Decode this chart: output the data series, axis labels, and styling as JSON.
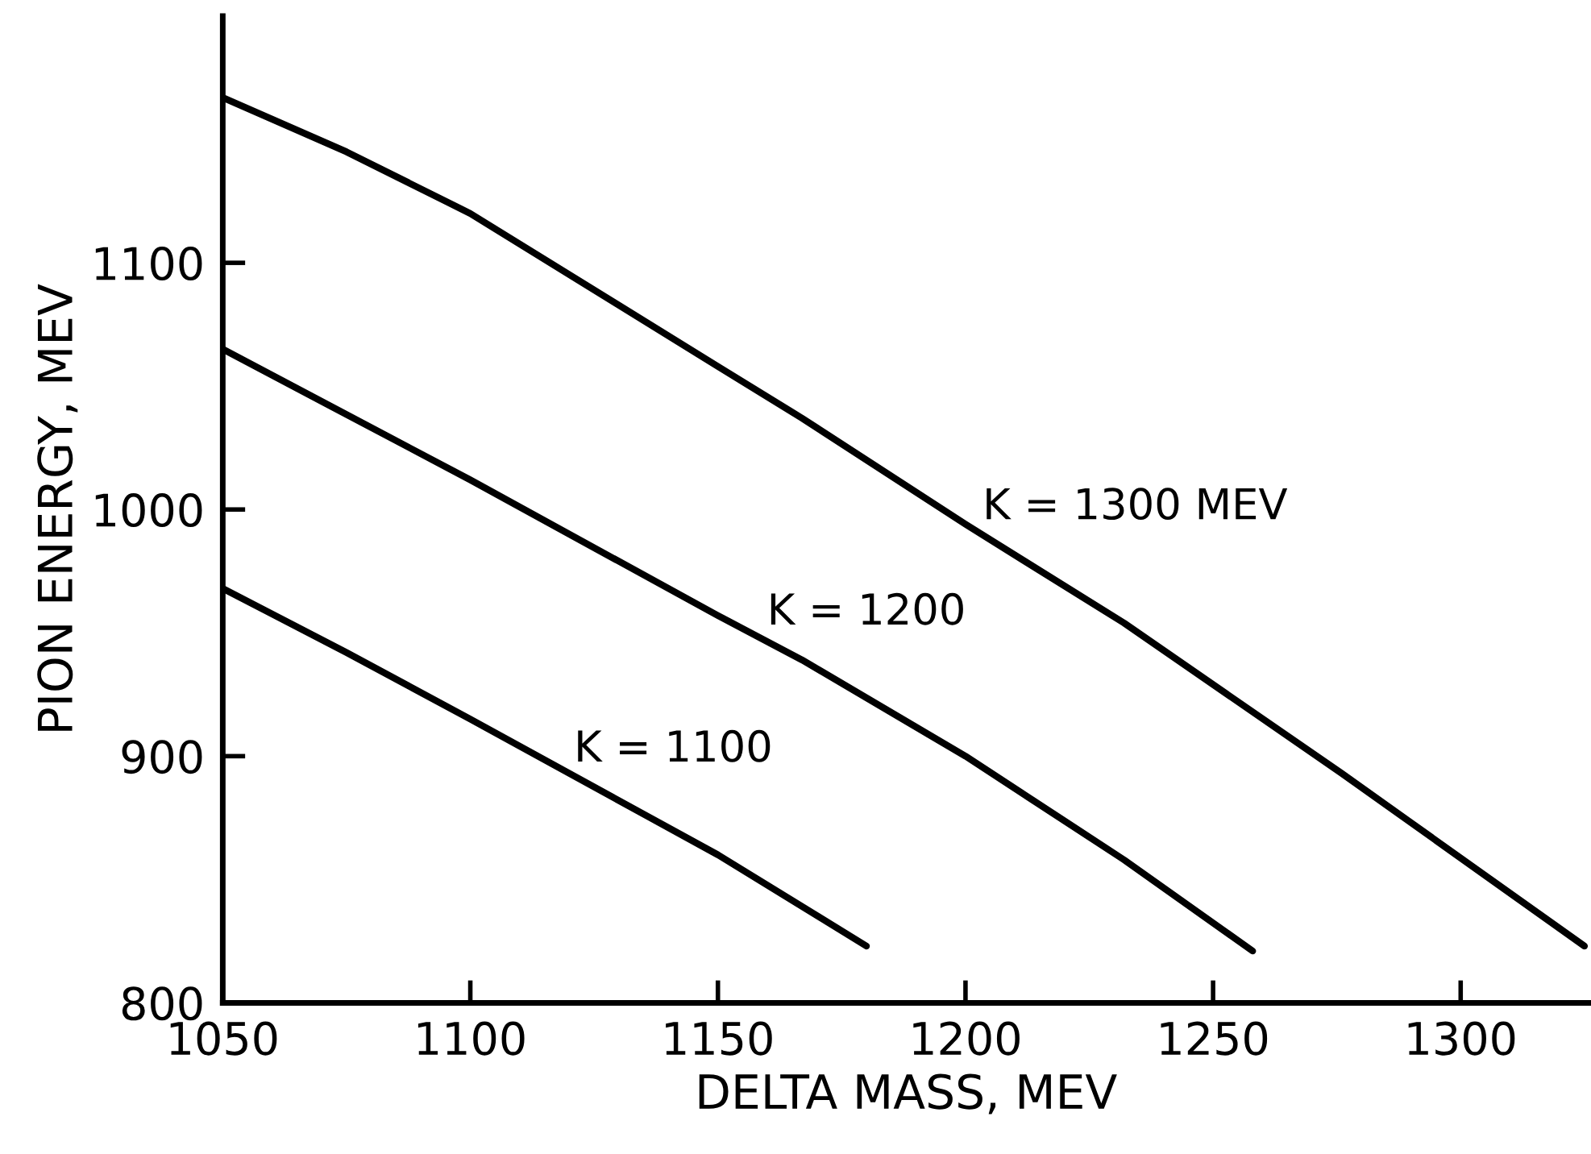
{
  "chart_data": {
    "type": "line",
    "xlabel": "DELTA MASS, MEV",
    "ylabel": "PION ENERGY, MEV",
    "xlim": [
      1050,
      1326
    ],
    "ylim": [
      800,
      1200
    ],
    "xticks": [
      1050,
      1100,
      1150,
      1200,
      1250,
      1300
    ],
    "yticks": [
      800,
      900,
      1000,
      1100
    ],
    "grid": false,
    "marker": "none",
    "line_style": "solid",
    "series": [
      {
        "name": "K = 1100",
        "color": "#000000",
        "x": [
          1050,
          1075,
          1100,
          1150,
          1180
        ],
        "values": [
          968,
          942,
          915,
          860,
          823
        ]
      },
      {
        "name": "K = 1200",
        "color": "#000000",
        "x": [
          1050,
          1100,
          1150,
          1167,
          1200,
          1232,
          1258
        ],
        "values": [
          1065,
          1012,
          957,
          939,
          900,
          858,
          821
        ]
      },
      {
        "name": "K = 1300 MEV",
        "color": "#000000",
        "x": [
          1050,
          1075,
          1100,
          1150,
          1167,
          1200,
          1232,
          1276,
          1325
        ],
        "values": [
          1167,
          1145,
          1120,
          1058,
          1037,
          994,
          954,
          893,
          823
        ]
      }
    ]
  }
}
